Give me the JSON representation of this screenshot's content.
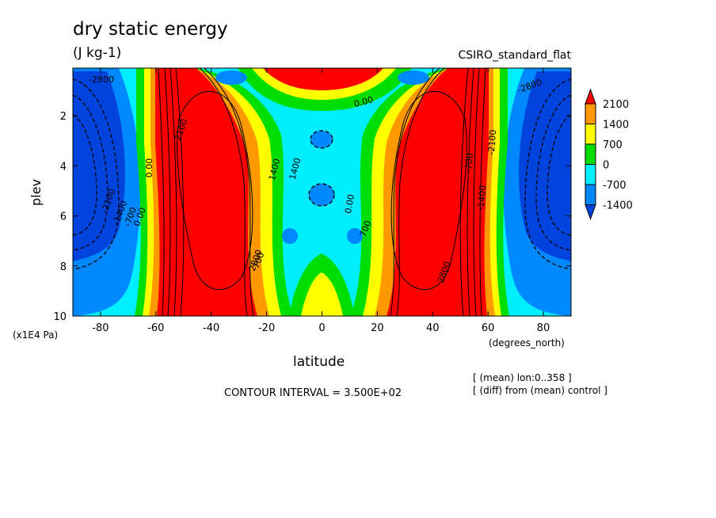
{
  "chart_data": {
    "type": "contour",
    "title": "dry static energy",
    "units": "(J kg-1)",
    "model": "CSIRO_standard_flat",
    "xlabel": "latitude",
    "xlabel_unit": "(degrees_north)",
    "ylabel": "plev",
    "ylabel_unit": "(x1E4 Pa)",
    "xlim": [
      -90,
      90
    ],
    "ylim": [
      10,
      0.1
    ],
    "x_ticks": [
      -80,
      -60,
      -40,
      -20,
      0,
      20,
      40,
      60,
      80
    ],
    "y_ticks": [
      2,
      4,
      6,
      8,
      10
    ],
    "contour_interval": "CONTOUR INTERVAL = 3.500E+02",
    "notes": [
      "[ (mean) lon:0..358 ]",
      "[ (diff) from (mean) control ]"
    ],
    "levels": [
      "2100",
      "1400",
      "700",
      "0",
      "-700",
      "-1400"
    ],
    "fill_colors": [
      "#ff0000",
      "#ff9900",
      "#ffff00",
      "#00dd00",
      "#00eeff",
      "#0088ff",
      "#0044dd"
    ],
    "contour_labels": [
      "-2800",
      "-2100",
      "-1400",
      "-700",
      "0.00",
      "0.00",
      "1400",
      "700",
      "2100",
      "1400",
      "700",
      "0.00",
      "-700",
      "-1400",
      "-2100",
      "-2800",
      "2800",
      "2800",
      "0.00"
    ]
  }
}
